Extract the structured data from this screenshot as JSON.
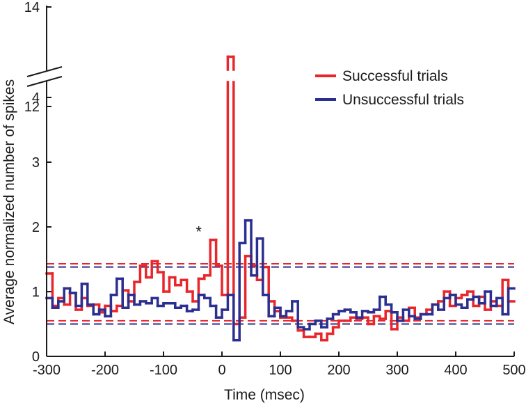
{
  "chart_data": {
    "type": "line",
    "step": true,
    "xlabel": "Time (msec)",
    "ylabel": "Average normalized number of spikes",
    "xlim": [
      -300,
      500
    ],
    "ylim": [
      0,
      14
    ],
    "y_axis_break": [
      4.4,
      11.6
    ],
    "x_ticks": [
      -300,
      -200,
      -100,
      0,
      100,
      200,
      300,
      400,
      500
    ],
    "x_tick_labels": [
      "-300",
      "-200",
      "-100",
      "0",
      "100",
      "200",
      "300",
      "400",
      "500"
    ],
    "y_ticks": [
      0,
      1,
      2,
      3,
      4,
      12,
      14
    ],
    "y_tick_labels": [
      "0",
      "1",
      "2",
      "3",
      "4",
      "12",
      "14"
    ],
    "legend": {
      "position": "top-right",
      "entries": [
        "Successful trials",
        "Unsuccessful trials"
      ]
    },
    "annotations": [
      {
        "text": "*",
        "x": -35,
        "y": 1.8
      }
    ],
    "series": [
      {
        "name": "Successful trials",
        "color": "#e8262b",
        "x": [
          -300,
          -290,
          -280,
          -270,
          -260,
          -250,
          -240,
          -230,
          -220,
          -210,
          -200,
          -190,
          -180,
          -170,
          -160,
          -150,
          -140,
          -130,
          -120,
          -110,
          -100,
          -90,
          -80,
          -70,
          -60,
          -50,
          -40,
          -30,
          -20,
          -10,
          0,
          10,
          20,
          30,
          40,
          50,
          60,
          70,
          80,
          90,
          100,
          110,
          120,
          130,
          140,
          150,
          160,
          170,
          180,
          190,
          200,
          210,
          220,
          230,
          240,
          250,
          260,
          270,
          280,
          290,
          300,
          310,
          320,
          330,
          340,
          350,
          360,
          370,
          380,
          390,
          400,
          410,
          420,
          430,
          440,
          450,
          460,
          470,
          480,
          490
        ],
        "y": [
          1.28,
          0.78,
          0.9,
          0.8,
          0.98,
          0.72,
          0.9,
          0.78,
          0.8,
          0.68,
          0.78,
          0.7,
          0.78,
          1.02,
          0.85,
          1.15,
          1.4,
          1.22,
          1.47,
          1.3,
          1.0,
          1.22,
          1.1,
          1.18,
          1.0,
          0.85,
          1.2,
          1.25,
          1.8,
          1.4,
          0.95,
          13.0,
          0.5,
          0.6,
          1.55,
          1.4,
          1.18,
          1.38,
          0.85,
          0.7,
          0.6,
          0.6,
          0.55,
          0.4,
          0.3,
          0.3,
          0.35,
          0.25,
          0.35,
          0.45,
          0.55,
          0.55,
          0.6,
          0.58,
          0.6,
          0.5,
          0.62,
          0.58,
          0.7,
          0.42,
          0.6,
          0.55,
          0.75,
          0.6,
          0.65,
          0.72,
          0.8,
          0.85,
          1.0,
          0.78,
          0.9,
          0.95,
          1.0,
          0.78,
          0.92,
          0.72,
          0.85,
          0.78,
          1.18,
          0.85
        ]
      },
      {
        "name": "Unsuccessful trials",
        "color": "#2b2f8f",
        "x": [
          -300,
          -290,
          -280,
          -270,
          -260,
          -250,
          -240,
          -230,
          -220,
          -210,
          -200,
          -190,
          -180,
          -170,
          -160,
          -150,
          -140,
          -130,
          -120,
          -110,
          -100,
          -90,
          -80,
          -70,
          -60,
          -50,
          -40,
          -30,
          -20,
          -10,
          0,
          10,
          20,
          30,
          40,
          50,
          60,
          70,
          80,
          90,
          100,
          110,
          120,
          130,
          140,
          150,
          160,
          170,
          180,
          190,
          200,
          210,
          220,
          230,
          240,
          250,
          260,
          270,
          280,
          290,
          300,
          310,
          320,
          330,
          340,
          350,
          360,
          370,
          380,
          390,
          400,
          410,
          420,
          430,
          440,
          450,
          460,
          470,
          480,
          490
        ],
        "y": [
          0.9,
          0.75,
          0.85,
          1.05,
          0.98,
          0.78,
          1.12,
          0.8,
          0.65,
          0.72,
          0.62,
          0.95,
          1.2,
          0.75,
          0.95,
          0.8,
          0.85,
          0.82,
          0.9,
          0.78,
          0.82,
          0.82,
          0.75,
          0.78,
          0.7,
          0.72,
          0.95,
          0.9,
          0.78,
          0.6,
          0.72,
          0.95,
          0.25,
          1.75,
          2.1,
          1.25,
          1.82,
          0.95,
          0.62,
          0.75,
          0.62,
          0.7,
          0.85,
          0.45,
          0.42,
          0.5,
          0.55,
          0.45,
          0.58,
          0.65,
          0.7,
          0.72,
          0.68,
          0.6,
          0.7,
          0.68,
          0.72,
          0.92,
          0.8,
          0.68,
          0.55,
          0.72,
          0.62,
          0.58,
          0.65,
          0.65,
          0.8,
          0.72,
          0.9,
          0.95,
          0.8,
          0.75,
          0.88,
          0.92,
          0.82,
          1.0,
          0.78,
          0.9,
          0.65,
          1.05
        ]
      }
    ],
    "threshold_lines": [
      {
        "color": "#e8262b",
        "dashed": true,
        "y": 1.43
      },
      {
        "color": "#e8262b",
        "dashed": true,
        "y": 0.55
      },
      {
        "color": "#2b2f8f",
        "dashed": true,
        "y": 1.38
      },
      {
        "color": "#2b2f8f",
        "dashed": true,
        "y": 0.5
      }
    ]
  }
}
